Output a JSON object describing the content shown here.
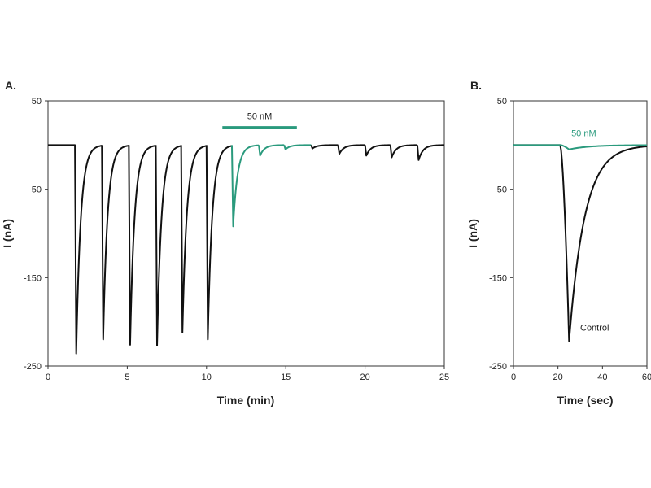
{
  "colors": {
    "control": "#111111",
    "treatment": "#2a9a7d"
  },
  "chart_data": [
    {
      "panel": "A.",
      "type": "line",
      "xlabel": "Time (min)",
      "ylabel": "I (nA)",
      "xlim": [
        0,
        25
      ],
      "ylim": [
        -250,
        50
      ],
      "xticks": [
        0,
        5,
        10,
        15,
        20,
        25
      ],
      "yticks": [
        50,
        -50,
        -150,
        -250
      ],
      "grid": false,
      "baseline": 0,
      "bar": {
        "label": "50 nM",
        "x_start": 11,
        "x_end": 15.7,
        "y": 20
      },
      "pulses": [
        {
          "t": 1.7,
          "peak": -236,
          "series": "control"
        },
        {
          "t": 3.4,
          "peak": -220,
          "series": "control"
        },
        {
          "t": 5.1,
          "peak": -226,
          "series": "control"
        },
        {
          "t": 6.8,
          "peak": -227,
          "series": "control"
        },
        {
          "t": 8.4,
          "peak": -212,
          "series": "control"
        },
        {
          "t": 10.0,
          "peak": -220,
          "series": "control"
        },
        {
          "t": 11.6,
          "peak": -92,
          "series": "treatment"
        },
        {
          "t": 13.3,
          "peak": -12,
          "series": "treatment"
        },
        {
          "t": 14.9,
          "peak": -5,
          "series": "treatment"
        },
        {
          "t": 16.6,
          "peak": -4,
          "series": "control"
        },
        {
          "t": 18.3,
          "peak": -10,
          "series": "control"
        },
        {
          "t": 20.0,
          "peak": -12,
          "series": "control"
        },
        {
          "t": 21.6,
          "peak": -14,
          "series": "control"
        },
        {
          "t": 23.3,
          "peak": -17,
          "series": "control"
        }
      ]
    },
    {
      "panel": "B.",
      "type": "line",
      "xlabel": "Time (sec)",
      "ylabel": "I (nA)",
      "xlim": [
        0,
        60
      ],
      "ylim": [
        -250,
        50
      ],
      "xticks": [
        0,
        20,
        40,
        60
      ],
      "yticks": [
        50,
        -50,
        -150,
        -250
      ],
      "grid": false,
      "series": [
        {
          "name": "Control",
          "onset": 21,
          "peak_t": 25,
          "peak": -222
        },
        {
          "name": "50 nM",
          "onset": 21,
          "peak_t": 25,
          "peak": -5
        }
      ],
      "annotations": [
        {
          "text": "50 nM",
          "x": 26,
          "y": 10
        },
        {
          "text": "Control",
          "x": 30,
          "y": -210
        }
      ]
    }
  ]
}
